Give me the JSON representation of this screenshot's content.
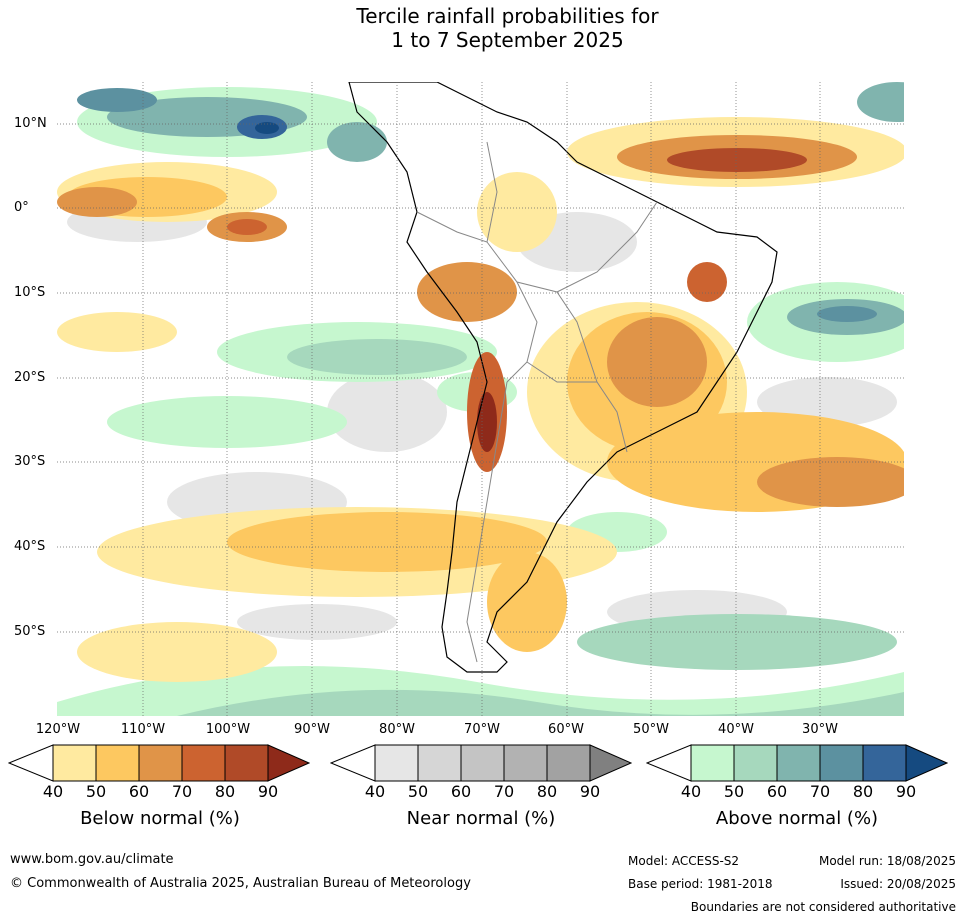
{
  "title_line1": "Tercile rainfall probabilities for",
  "title_line2": "1 to 7 September 2025",
  "lat_ticks": [
    "10°N",
    "0°",
    "10°S",
    "20°S",
    "30°S",
    "40°S",
    "50°S"
  ],
  "lon_ticks": [
    "120°W",
    "110°W",
    "100°W",
    "90°W",
    "80°W",
    "70°W",
    "60°W",
    "50°W",
    "40°W",
    "30°W"
  ],
  "colorbars": [
    {
      "label": "Below normal (%)",
      "ticks": [
        "40",
        "50",
        "60",
        "70",
        "80",
        "90"
      ],
      "colors": [
        "#ffeaa0",
        "#fdc860",
        "#e09448",
        "#cc6330",
        "#b04a28",
        "#8e2a1a"
      ]
    },
    {
      "label": "Near normal (%)",
      "ticks": [
        "40",
        "50",
        "60",
        "70",
        "80",
        "90"
      ],
      "colors": [
        "#e6e6e6",
        "#d6d6d6",
        "#c4c4c4",
        "#b2b2b2",
        "#a2a2a2",
        "#808080"
      ]
    },
    {
      "label": "Above normal (%)",
      "ticks": [
        "40",
        "50",
        "60",
        "70",
        "80",
        "90"
      ],
      "colors": [
        "#c6f7cf",
        "#a6d8bd",
        "#80b4ae",
        "#5c91a0",
        "#34659a",
        "#154a80"
      ]
    }
  ],
  "footer": {
    "website": "www.bom.gov.au/climate",
    "copyright": "© Commonwealth of Australia 2025, Australian Bureau of Meteorology",
    "model": "Model: ACCESS-S2",
    "model_run": "Model run: 18/08/2025",
    "base_period": "Base period: 1981-2018",
    "issued": "Issued: 20/08/2025",
    "disclaimer": "Boundaries are not considered authoritative"
  }
}
